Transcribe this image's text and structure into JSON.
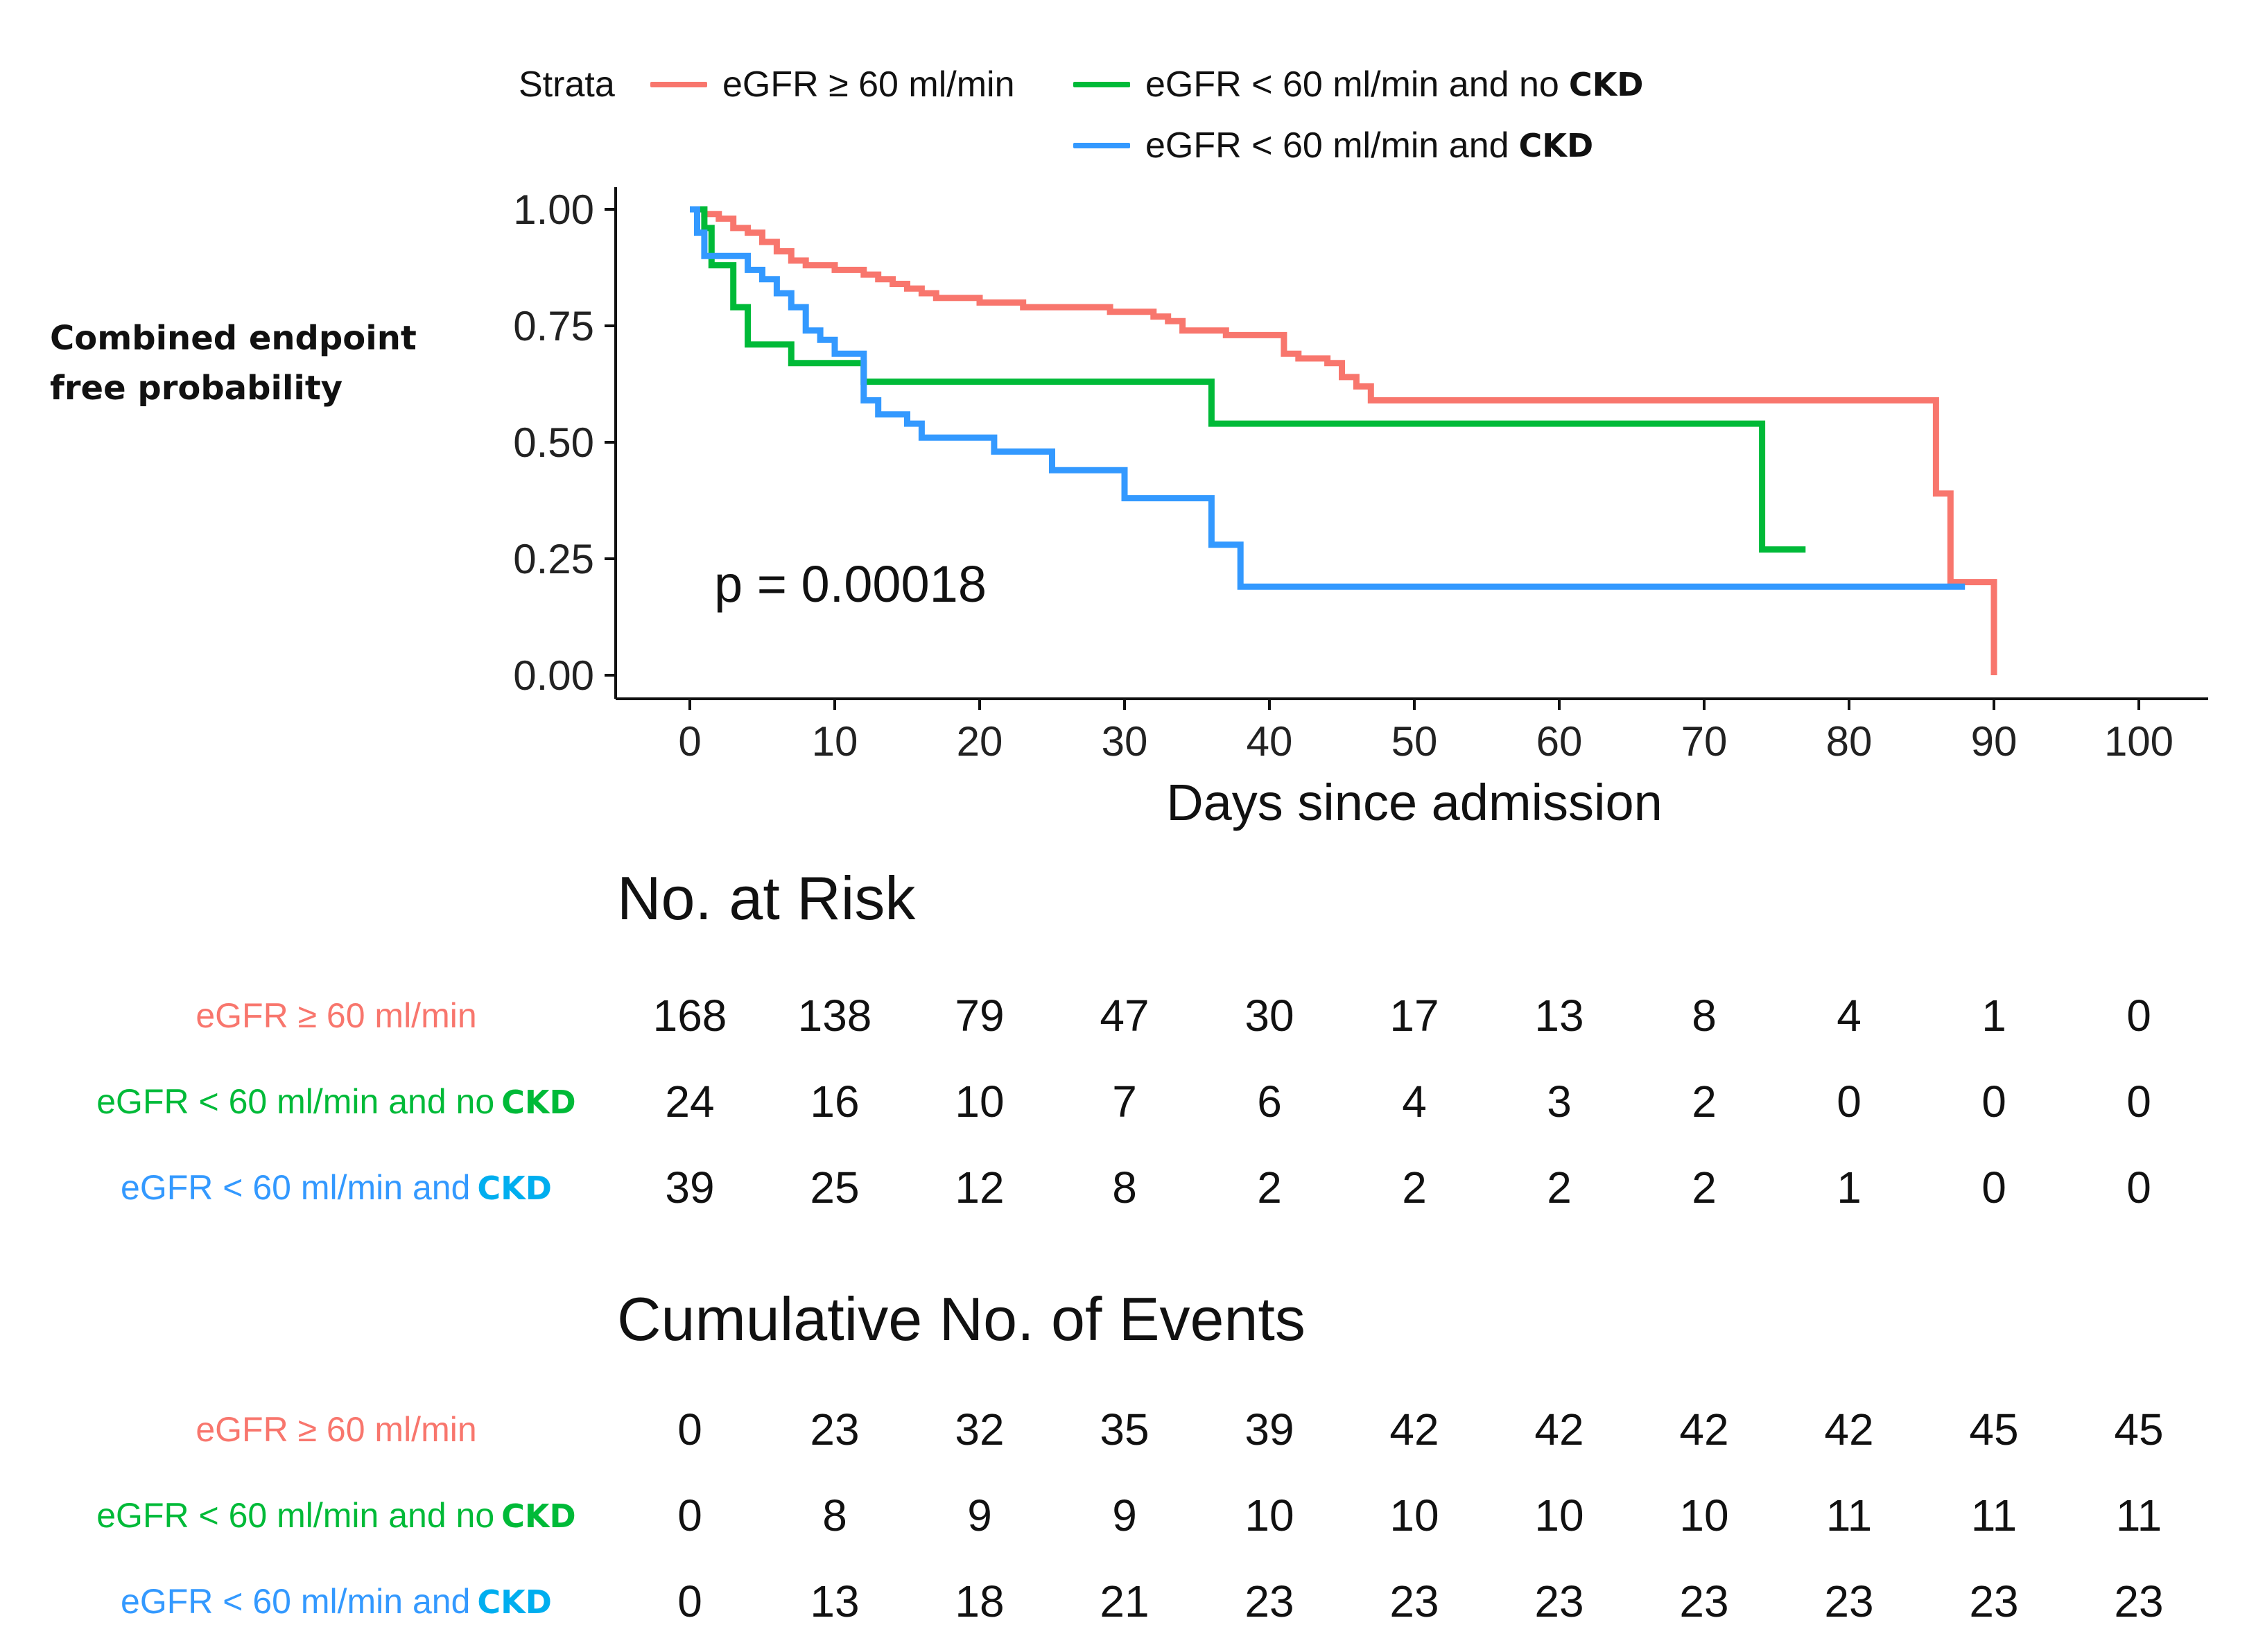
{
  "colors": {
    "red": "#F8766D",
    "green": "#00BA38",
    "blue": "#3399FF",
    "bold_blue": "#00AEEF"
  },
  "legend": {
    "title": "Strata",
    "items": [
      {
        "text": "eGFR ≥ 60 ml/min",
        "bold": "",
        "color_key": "red"
      },
      {
        "text": "eGFR < 60 ml/min and no",
        "bold": "CKD",
        "color_key": "green"
      },
      {
        "text": "eGFR < 60 ml/min and",
        "bold": "CKD",
        "color_key": "blue"
      }
    ]
  },
  "y_axis_title": [
    "Combined endpoint",
    "free probability"
  ],
  "chart_data": {
    "type": "line",
    "subtype": "kaplan-meier-step",
    "xlabel": "Days since admission",
    "ylabel": "Combined endpoint free probability",
    "xlim": [
      0,
      100
    ],
    "ylim": [
      0,
      1
    ],
    "x_ticks": [
      0,
      10,
      20,
      30,
      40,
      50,
      60,
      70,
      80,
      90,
      100
    ],
    "y_ticks": [
      "0.00",
      "0.25",
      "0.50",
      "0.75",
      "1.00"
    ],
    "annotation": "p = 0.00018",
    "grid": false,
    "legend_position": "top",
    "series": [
      {
        "name": "eGFR ≥ 60 ml/min",
        "color_key": "red",
        "points": [
          [
            0,
            1.0
          ],
          [
            1,
            0.99
          ],
          [
            2,
            0.98
          ],
          [
            3,
            0.96
          ],
          [
            4,
            0.95
          ],
          [
            5,
            0.93
          ],
          [
            6,
            0.91
          ],
          [
            7,
            0.89
          ],
          [
            8,
            0.88
          ],
          [
            10,
            0.87
          ],
          [
            12,
            0.86
          ],
          [
            13,
            0.85
          ],
          [
            14,
            0.84
          ],
          [
            15,
            0.83
          ],
          [
            16,
            0.82
          ],
          [
            17,
            0.81
          ],
          [
            19,
            0.81
          ],
          [
            20,
            0.8
          ],
          [
            23,
            0.79
          ],
          [
            26,
            0.79
          ],
          [
            29,
            0.78
          ],
          [
            32,
            0.77
          ],
          [
            33,
            0.76
          ],
          [
            34,
            0.74
          ],
          [
            37,
            0.73
          ],
          [
            40,
            0.73
          ],
          [
            41,
            0.69
          ],
          [
            42,
            0.68
          ],
          [
            44,
            0.67
          ],
          [
            45,
            0.64
          ],
          [
            46,
            0.62
          ],
          [
            47,
            0.59
          ],
          [
            50,
            0.59
          ],
          [
            86,
            0.59
          ],
          [
            86,
            0.39
          ],
          [
            87,
            0.39
          ],
          [
            87,
            0.2
          ],
          [
            90,
            0.2
          ],
          [
            90,
            0.0
          ]
        ]
      },
      {
        "name": "eGFR < 60 ml/min and no CKD",
        "color_key": "green",
        "points": [
          [
            0,
            1.0
          ],
          [
            1,
            0.96
          ],
          [
            1.5,
            0.88
          ],
          [
            2,
            0.88
          ],
          [
            3,
            0.79
          ],
          [
            4,
            0.71
          ],
          [
            7,
            0.71
          ],
          [
            7,
            0.67
          ],
          [
            11,
            0.67
          ],
          [
            12,
            0.63
          ],
          [
            36,
            0.63
          ],
          [
            36,
            0.54
          ],
          [
            74,
            0.54
          ],
          [
            74,
            0.27
          ],
          [
            77,
            0.27
          ]
        ]
      },
      {
        "name": "eGFR < 60 ml/min and CKD",
        "color_key": "blue",
        "points": [
          [
            0,
            1.0
          ],
          [
            0.5,
            0.95
          ],
          [
            1,
            0.9
          ],
          [
            4,
            0.9
          ],
          [
            4,
            0.87
          ],
          [
            5,
            0.85
          ],
          [
            6,
            0.82
          ],
          [
            7,
            0.79
          ],
          [
            8,
            0.74
          ],
          [
            9,
            0.72
          ],
          [
            10,
            0.69
          ],
          [
            12,
            0.64
          ],
          [
            12,
            0.62
          ],
          [
            12,
            0.59
          ],
          [
            13,
            0.56
          ],
          [
            15,
            0.54
          ],
          [
            16,
            0.51
          ],
          [
            21,
            0.51
          ],
          [
            21,
            0.48
          ],
          [
            25,
            0.48
          ],
          [
            25,
            0.44
          ],
          [
            30,
            0.44
          ],
          [
            30,
            0.38
          ],
          [
            36,
            0.38
          ],
          [
            36,
            0.28
          ],
          [
            38,
            0.28
          ],
          [
            38,
            0.19
          ],
          [
            88,
            0.19
          ]
        ]
      }
    ]
  },
  "risk_table": {
    "title": "No. at Risk",
    "time_points": [
      0,
      10,
      20,
      30,
      40,
      50,
      60,
      70,
      80,
      90,
      100
    ],
    "rows": [
      {
        "label": "eGFR ≥ 60 ml/min",
        "bold": "",
        "color_key": "red",
        "values": [
          "168",
          "138",
          "79",
          "47",
          "30",
          "17",
          "13",
          "8",
          "4",
          "1",
          "0"
        ]
      },
      {
        "label": "eGFR < 60 ml/min and no",
        "bold": "CKD",
        "color_key": "green",
        "values": [
          "24",
          "16",
          "10",
          "7",
          "6",
          "4",
          "3",
          "2",
          "0",
          "0",
          "0"
        ]
      },
      {
        "label": "eGFR < 60 ml/min and",
        "bold": "CKD",
        "color_key": "blue",
        "values": [
          "39",
          "25",
          "12",
          "8",
          "2",
          "2",
          "2",
          "2",
          "1",
          "0",
          "0"
        ]
      }
    ]
  },
  "events_table": {
    "title": "Cumulative No. of Events",
    "time_points": [
      0,
      10,
      20,
      30,
      40,
      50,
      60,
      70,
      80,
      90,
      100
    ],
    "rows": [
      {
        "label": "eGFR ≥ 60 ml/min",
        "bold": "",
        "color_key": "red",
        "values": [
          "0",
          "23",
          "32",
          "35",
          "39",
          "42",
          "42",
          "42",
          "42",
          "45",
          "45"
        ]
      },
      {
        "label": "eGFR < 60 ml/min and no",
        "bold": "CKD",
        "color_key": "green",
        "values": [
          "0",
          "8",
          "9",
          "9",
          "10",
          "10",
          "10",
          "10",
          "11",
          "11",
          "11"
        ]
      },
      {
        "label": "eGFR < 60 ml/min and",
        "bold": "CKD",
        "color_key": "blue",
        "values": [
          "0",
          "13",
          "18",
          "21",
          "23",
          "23",
          "23",
          "23",
          "23",
          "23",
          "23"
        ]
      }
    ]
  }
}
